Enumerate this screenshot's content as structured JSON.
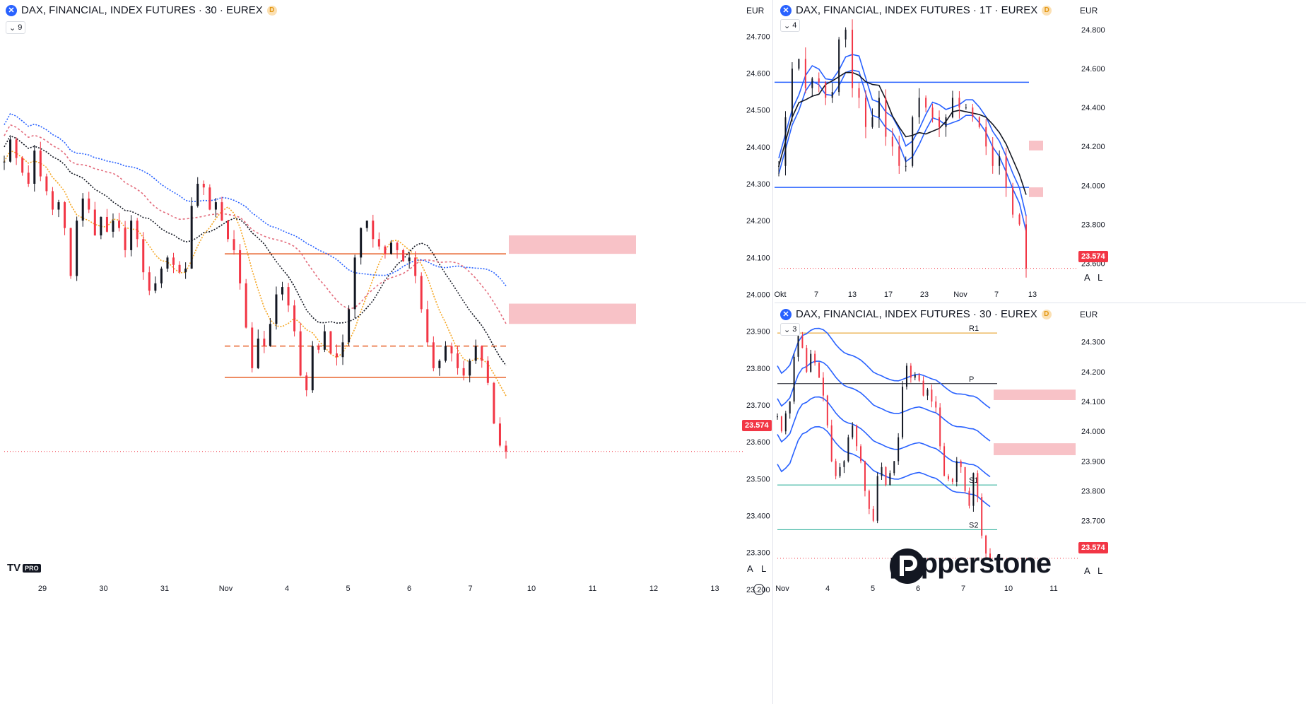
{
  "currency": "EUR",
  "price_tag": "23.574",
  "scale_buttons": [
    "A",
    "L"
  ],
  "branding": {
    "tv_logo": "TV",
    "tv_badge": "PRO",
    "brand_name": "pepperstone"
  },
  "panes": [
    {
      "title": "DAX, FINANCIAL, INDEX FUTURES · 30 · EUREX",
      "badge": "D",
      "indicator_count": "9",
      "y_ticks": [
        "24.700",
        "24.600",
        "24.500",
        "24.400",
        "24.300",
        "24.200",
        "24.100",
        "24.000",
        "23.900",
        "23.800",
        "23.700",
        "23.600",
        "23.500",
        "23.400",
        "23.300",
        "23.200"
      ],
      "x_ticks": [
        "29",
        "30",
        "31",
        "Nov",
        "4",
        "5",
        "6",
        "7",
        "10",
        "11",
        "12",
        "13"
      ]
    },
    {
      "title": "DAX, FINANCIAL, INDEX FUTURES · 1T · EUREX",
      "badge": "D",
      "indicator_count": "4",
      "y_ticks": [
        "24.800",
        "24.600",
        "24.400",
        "24.200",
        "24.000",
        "23.800",
        "23.600"
      ],
      "x_ticks": [
        "Okt",
        "7",
        "13",
        "17",
        "23",
        "Nov",
        "7",
        "13"
      ]
    },
    {
      "title": "DAX, FINANCIAL, INDEX FUTURES · 30 · EUREX",
      "badge": "D",
      "indicator_count": "3",
      "y_ticks": [
        "24.300",
        "24.200",
        "24.100",
        "24.000",
        "23.900",
        "23.800",
        "23.700",
        "23.600"
      ],
      "x_ticks": [
        "Nov",
        "4",
        "5",
        "6",
        "7",
        "10",
        "11"
      ],
      "pivot_labels": [
        "R1",
        "P",
        "S1",
        "S2"
      ]
    }
  ],
  "colors": {
    "up": "#131722",
    "down": "#f23645",
    "zone": "#f8c2c7",
    "accent": "#2962ff",
    "orange": "#e8622a"
  },
  "chart_data": [
    {
      "type": "candlestick",
      "title": "DAX, FINANCIAL, INDEX FUTURES · 30 · EUREX",
      "ylim": [
        23150,
        24760
      ],
      "last_price": 23574,
      "levels": [
        24110,
        23860,
        23775
      ],
      "zones": [
        [
          24110,
          24160
        ],
        [
          23920,
          23975
        ]
      ],
      "close_path": [
        24360,
        24420,
        24370,
        24330,
        24300,
        24390,
        24320,
        24280,
        24230,
        24250,
        24180,
        24050,
        24200,
        24260,
        24230,
        24160,
        24210,
        24170,
        24200,
        24180,
        24120,
        24200,
        24150,
        24060,
        24010,
        24030,
        24070,
        24100,
        24080,
        24060,
        24070,
        24240,
        24300,
        24290,
        24230,
        24250,
        24200,
        24150,
        24120,
        24030,
        23910,
        23800,
        23880,
        23860,
        23920,
        24000,
        24020,
        23970,
        23900,
        23780,
        23740,
        23860,
        23850,
        23900,
        23840,
        23830,
        23870,
        23960,
        24100,
        24180,
        24200,
        24150,
        24130,
        24110,
        24140,
        24120,
        24090,
        24100,
        24050,
        23960,
        23870,
        23800,
        23820,
        23860,
        23840,
        23800,
        23780,
        23820,
        23860,
        23820,
        23760,
        23650,
        23590,
        23574
      ]
    },
    {
      "type": "candlestick",
      "title": "DAX, FINANCIAL, INDEX FUTURES · 1T · EUREX",
      "x_ticks": [
        "Okt",
        "7",
        "13",
        "17",
        "23",
        "Nov",
        "7",
        "13"
      ],
      "ylim": [
        23500,
        24880
      ],
      "last_price": 23574,
      "levels": [
        24530,
        23990
      ],
      "zones": [
        [
          24230,
          24180
        ],
        [
          23990,
          23940
        ]
      ],
      "close_path": [
        24100,
        24350,
        24600,
        24650,
        24500,
        24550,
        24530,
        24450,
        24480,
        24750,
        24800,
        24500,
        24450,
        24300,
        24350,
        24450,
        24250,
        24200,
        24100,
        24100,
        24350,
        24450,
        24400,
        24350,
        24300,
        24350,
        24450,
        24400,
        24400,
        24350,
        24300,
        24200,
        24100,
        24150,
        23990,
        23850,
        23800,
        23574
      ]
    },
    {
      "type": "candlestick",
      "title": "DAX, FINANCIAL, INDEX FUTURES · 30 · EUREX",
      "x_ticks": [
        "Nov",
        "4",
        "5",
        "6",
        "7",
        "10",
        "11"
      ],
      "ylim": [
        23550,
        24380
      ],
      "last_price": 23574,
      "pivots": [
        {
          "name": "R1",
          "value": 24330
        },
        {
          "name": "P",
          "value": 24160
        },
        {
          "name": "S1",
          "value": 23820
        },
        {
          "name": "S2",
          "value": 23670
        }
      ],
      "zones": [
        [
          24140,
          24105
        ],
        [
          23960,
          23920
        ]
      ],
      "close_path": [
        24050,
        24000,
        24060,
        24100,
        24250,
        24320,
        24280,
        24200,
        24260,
        24230,
        24180,
        24120,
        24020,
        23900,
        23850,
        23880,
        23900,
        23980,
        24020,
        23950,
        23900,
        23800,
        23740,
        23700,
        23850,
        23880,
        23820,
        23860,
        23900,
        23980,
        24150,
        24220,
        24180,
        24190,
        24170,
        24120,
        24140,
        24100,
        24080,
        23950,
        23850,
        23840,
        23830,
        23900,
        23880,
        23800,
        23750,
        23860,
        23780,
        23650,
        23590,
        23574
      ]
    }
  ]
}
